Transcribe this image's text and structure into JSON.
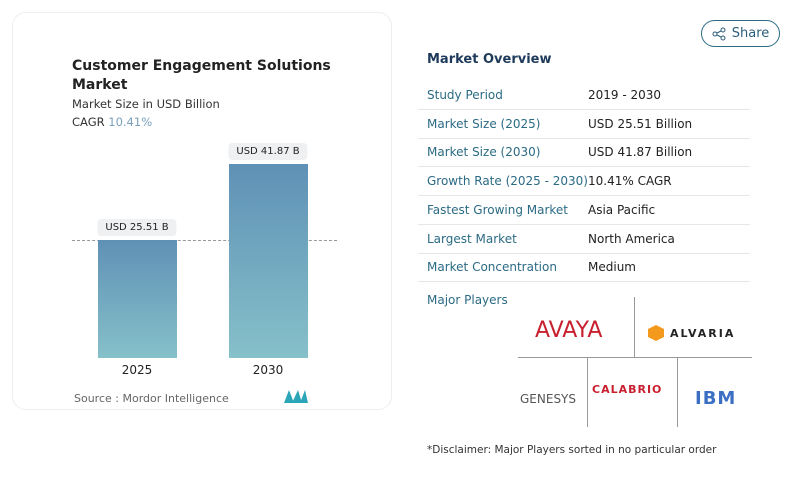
{
  "chart_data": {
    "type": "bar",
    "title": "Customer Engagement Solutions Market",
    "subtitle": "Market Size in USD Billion",
    "cagr_label": "CAGR",
    "cagr_value": "10.41%",
    "categories": [
      "2025",
      "2030"
    ],
    "values": [
      25.51,
      41.87
    ],
    "data_labels": [
      "USD 25.51 B",
      "USD 41.87 B"
    ],
    "bar_color_top": "#5f91b6",
    "bar_color_bottom": "#86c0c9",
    "source": "Source :  Mordor Intelligence"
  },
  "share_label": "Share",
  "overview": {
    "title": "Market Overview",
    "rows": [
      {
        "k": "Study Period",
        "v": "2019 - 2030"
      },
      {
        "k": "Market Size (2025)",
        "v": "USD 25.51 Billion"
      },
      {
        "k": "Market Size (2030)",
        "v": "USD 41.87 Billion"
      },
      {
        "k": "Growth Rate (2025 - 2030)",
        "v": "10.41% CAGR"
      },
      {
        "k": "Fastest Growing Market",
        "v": "Asia Pacific"
      },
      {
        "k": "Largest Market",
        "v": "North America"
      },
      {
        "k": "Market Concentration",
        "v": "Medium"
      }
    ]
  },
  "players": {
    "title": "Major Players",
    "logos": [
      "AVAYA",
      "ALVARIA",
      "GENESYS",
      "CALABRIO",
      "IBM"
    ]
  },
  "disclaimer": "*Disclaimer: Major Players sorted in no particular order"
}
